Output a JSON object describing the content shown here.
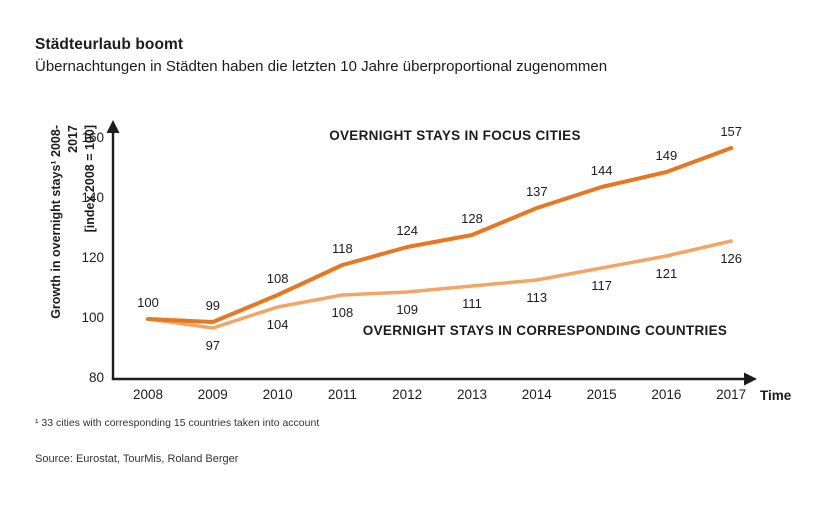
{
  "header": {
    "title": "Städteurlaub boomt",
    "subtitle": "Übernachtungen in Städten haben die letzten 10 Jahre überproportional zugenommen"
  },
  "chart_data": {
    "type": "line",
    "x": [
      2008,
      2009,
      2010,
      2011,
      2012,
      2013,
      2014,
      2015,
      2016,
      2017
    ],
    "xlabel": "Time",
    "ylabel_line1": "Growth in overnight stays¹ 2008-2017",
    "ylabel_line2": "[index 2008 = 100]",
    "ylim": [
      80,
      160
    ],
    "yticks": [
      80,
      100,
      120,
      140,
      160
    ],
    "grid": false,
    "legend_position": "inline-on-chart",
    "series": [
      {
        "name": "OVERNIGHT STAYS IN FOCUS CITIES",
        "color": "#E87722",
        "values": [
          100,
          99,
          108,
          118,
          124,
          128,
          137,
          144,
          149,
          157
        ],
        "label_position": "above",
        "skip_first_label": false
      },
      {
        "name": "OVERNIGHT STAYS IN CORRESPONDING COUNTRIES",
        "color": "#F2A665",
        "values": [
          100,
          97,
          104,
          108,
          109,
          111,
          113,
          117,
          121,
          126
        ],
        "label_position": "below",
        "skip_first_label": true
      }
    ]
  },
  "footnote": "¹ 33 cities with corresponding 15 countries taken into account",
  "source": "Source: Eurostat, TourMis, Roland Berger",
  "colors": {
    "focus_cities": "#E87722",
    "countries": "#F2A665",
    "axis": "#1c1c1c",
    "text": "#1c1c1c"
  }
}
